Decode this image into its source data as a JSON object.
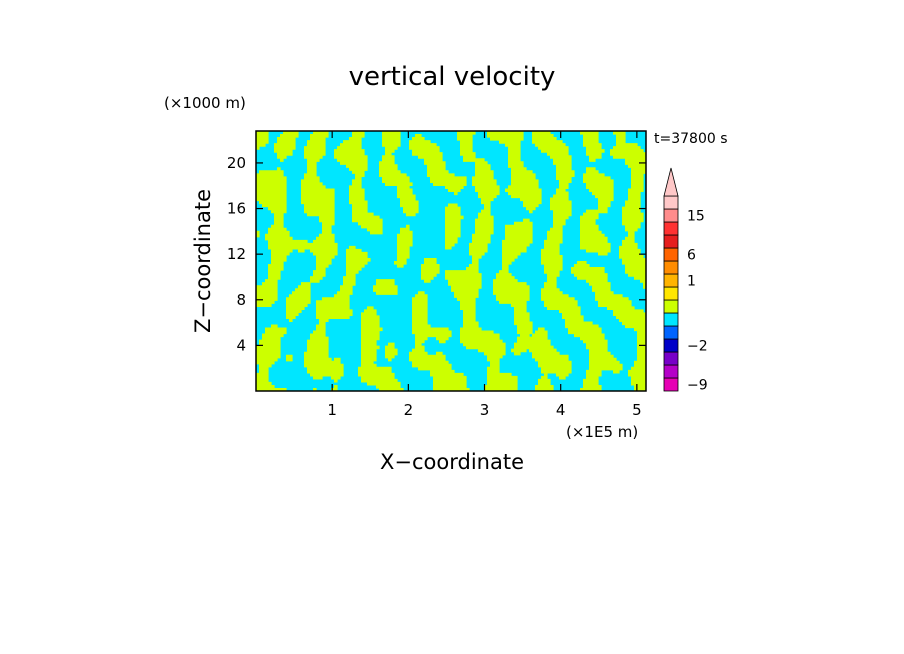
{
  "chart_data": {
    "type": "heatmap",
    "title": "vertical velocity",
    "xlabel": "X−coordinate",
    "ylabel": "Z−coordinate",
    "x_unit": "(×1E5 m)",
    "y_unit": "(×1000 m)",
    "time_label": "t=37800 s",
    "xlim": [
      0,
      5.12
    ],
    "ylim": [
      0,
      22.8
    ],
    "xticks": [
      1,
      2,
      3,
      4,
      5
    ],
    "yticks": [
      4,
      8,
      12,
      16,
      20
    ],
    "field": {
      "description_colors": {
        "negative": "#00e6ff",
        "positive": "#ccff00"
      }
    },
    "colorbar": {
      "extend": "max",
      "tick_labels": [
        "15",
        "6",
        "1",
        "−2",
        "−9"
      ],
      "tick_values": [
        15,
        6,
        1,
        -2,
        -9
      ],
      "levels": [
        {
          "color": "#e600b4",
          "value": -9
        },
        {
          "color": "#b400c8",
          "value": -6
        },
        {
          "color": "#7800c8",
          "value": -4
        },
        {
          "color": "#0000c8",
          "value": -2
        },
        {
          "color": "#0064ff",
          "value": -1
        },
        {
          "color": "#00e6ff",
          "value": -0.5
        },
        {
          "color": "#ccff00",
          "value": 0
        },
        {
          "color": "#ffe600",
          "value": 0.5
        },
        {
          "color": "#ffb400",
          "value": 1
        },
        {
          "color": "#ff8c00",
          "value": 3
        },
        {
          "color": "#ff6400",
          "value": 6
        },
        {
          "color": "#e61e1e",
          "value": 9
        },
        {
          "color": "#ff3232",
          "value": 12
        },
        {
          "color": "#ff8c8c",
          "value": 15
        },
        {
          "color": "#ffc8c8",
          "value": 18
        }
      ]
    }
  }
}
